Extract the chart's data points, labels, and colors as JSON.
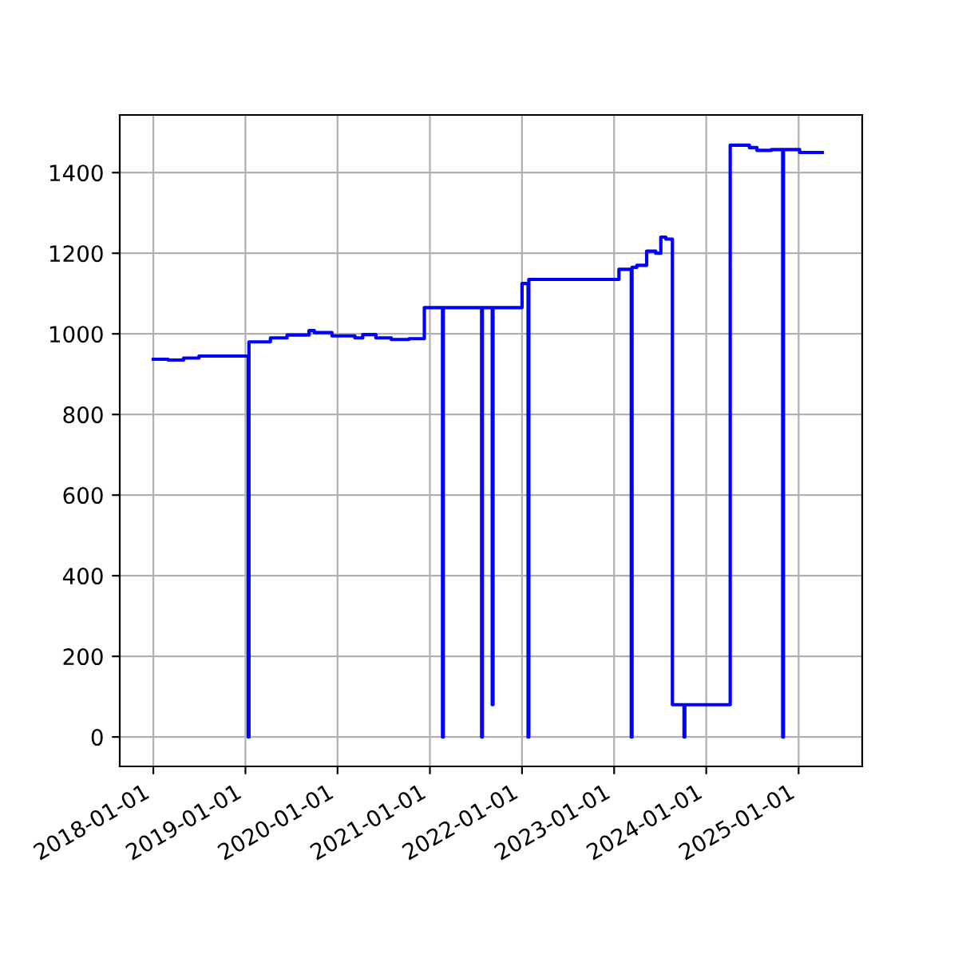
{
  "chart_data": {
    "type": "step",
    "color": "#0000ff",
    "x": [
      "2018-01-01",
      "2018-03-01",
      "2018-05-01",
      "2018-07-01",
      "2019-01-12",
      "2019-01-15",
      "2019-04-10",
      "2019-06-15",
      "2019-09-10",
      "2019-10-01",
      "2019-12-10",
      "2020-03-10",
      "2020-04-10",
      "2020-06-01",
      "2020-08-01",
      "2020-10-10",
      "2020-12-10",
      "2021-02-20",
      "2021-02-23",
      "2021-07-25",
      "2021-07-28",
      "2021-09-05",
      "2021-09-08",
      "2022-01-01",
      "2022-01-25",
      "2022-01-28",
      "2023-01-20",
      "2023-03-10",
      "2023-03-13",
      "2023-04-01",
      "2023-05-10",
      "2023-06-15",
      "2023-07-05",
      "2023-07-25",
      "2023-08-20",
      "2023-10-05",
      "2023-10-08",
      "2024-04-05",
      "2024-06-20",
      "2024-07-20",
      "2024-09-15",
      "2024-10-30",
      "2024-11-02",
      "2025-01-05",
      "2025-04-05"
    ],
    "values": [
      937,
      935,
      940,
      945,
      0,
      980,
      990,
      997,
      1008,
      1003,
      995,
      990,
      998,
      990,
      986,
      988,
      1065,
      0,
      1065,
      0,
      1065,
      80,
      1065,
      1125,
      0,
      1135,
      1160,
      0,
      1165,
      1170,
      1205,
      1200,
      1240,
      1235,
      80,
      0,
      80,
      1468,
      1462,
      1455,
      1457,
      0,
      1457,
      1450,
      1450
    ],
    "xlim": [
      "2017-08-21",
      "2025-09-10"
    ],
    "xticks": [
      "2018-01-01",
      "2019-01-01",
      "2020-01-01",
      "2021-01-01",
      "2022-01-01",
      "2023-01-01",
      "2024-01-01",
      "2025-01-01"
    ],
    "ylim": [
      -73,
      1543
    ],
    "yticks": [
      0,
      200,
      400,
      600,
      800,
      1000,
      1200,
      1400
    ],
    "grid": true
  }
}
